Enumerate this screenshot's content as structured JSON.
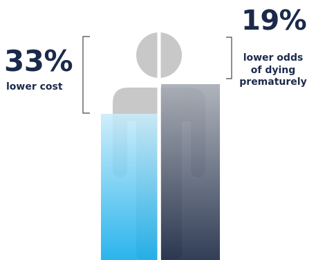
{
  "left_stat": {
    "value": "33%",
    "label": "lower cost"
  },
  "right_stat": {
    "value": "19%",
    "label_lines": [
      "lower odds",
      "of dying",
      "prematurely"
    ]
  },
  "colors": {
    "text": "#1b2a4a",
    "figure_gray": "#c8c8c8",
    "left_bar_top": "#c9ecfa",
    "left_bar_bottom": "#0eaaea",
    "right_bar_top": "#a5aab3",
    "right_bar_bottom": "#162440",
    "bracket": "#444444"
  },
  "icons": {
    "figure": "person-silhouette-icon"
  }
}
